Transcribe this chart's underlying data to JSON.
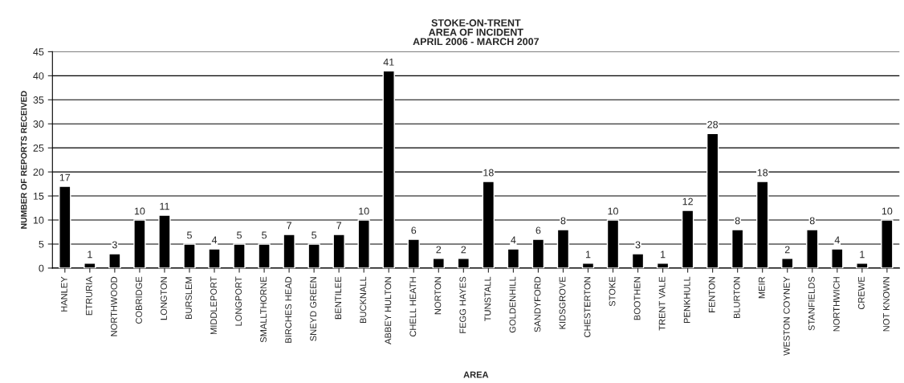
{
  "chart_data": {
    "type": "bar",
    "title": "STOKE-ON-TRENT\nAREA OF INCIDENT\nAPRIL 2006 - MARCH 2007",
    "xlabel": "AREA",
    "ylabel": "NUMBER OF REPORTS RECEIVED",
    "categories": [
      "HANLEY",
      "ETRURIA",
      "NORTHWOOD",
      "COBRIDGE",
      "LONGTON",
      "BURSLEM",
      "MIDDLEPORT",
      "LONGPORT",
      "SMALLTHORNE",
      "BIRCHES HEAD",
      "SNEYD GREEN",
      "BENTILEE",
      "BUCKNALL",
      "ABBEY HULTON",
      "CHELL HEATH",
      "NORTON",
      "FEGG HAYES",
      "TUNSTALL",
      "GOLDENHILL",
      "SANDYFORD",
      "KIDSGROVE",
      "CHESTERTON",
      "STOKE",
      "BOOTHEN",
      "TRENT VALE",
      "PENKHULL",
      "FENTON",
      "BLURTON",
      "MEIR",
      "WESTON COYNEY",
      "STANFIELDS",
      "NORTHWICH",
      "CREWE",
      "NOT KNOWN"
    ],
    "values": [
      17,
      1,
      3,
      10,
      11,
      5,
      4,
      5,
      5,
      7,
      5,
      7,
      10,
      41,
      6,
      2,
      2,
      18,
      4,
      6,
      8,
      1,
      10,
      3,
      1,
      12,
      28,
      8,
      18,
      2,
      8,
      4,
      1,
      10
    ],
    "color": "#000000",
    "ylim": [
      0,
      45
    ],
    "yticks": [
      0,
      5,
      10,
      15,
      20,
      25,
      30,
      35,
      40,
      45
    ],
    "grid": "y",
    "data_labels": true
  }
}
